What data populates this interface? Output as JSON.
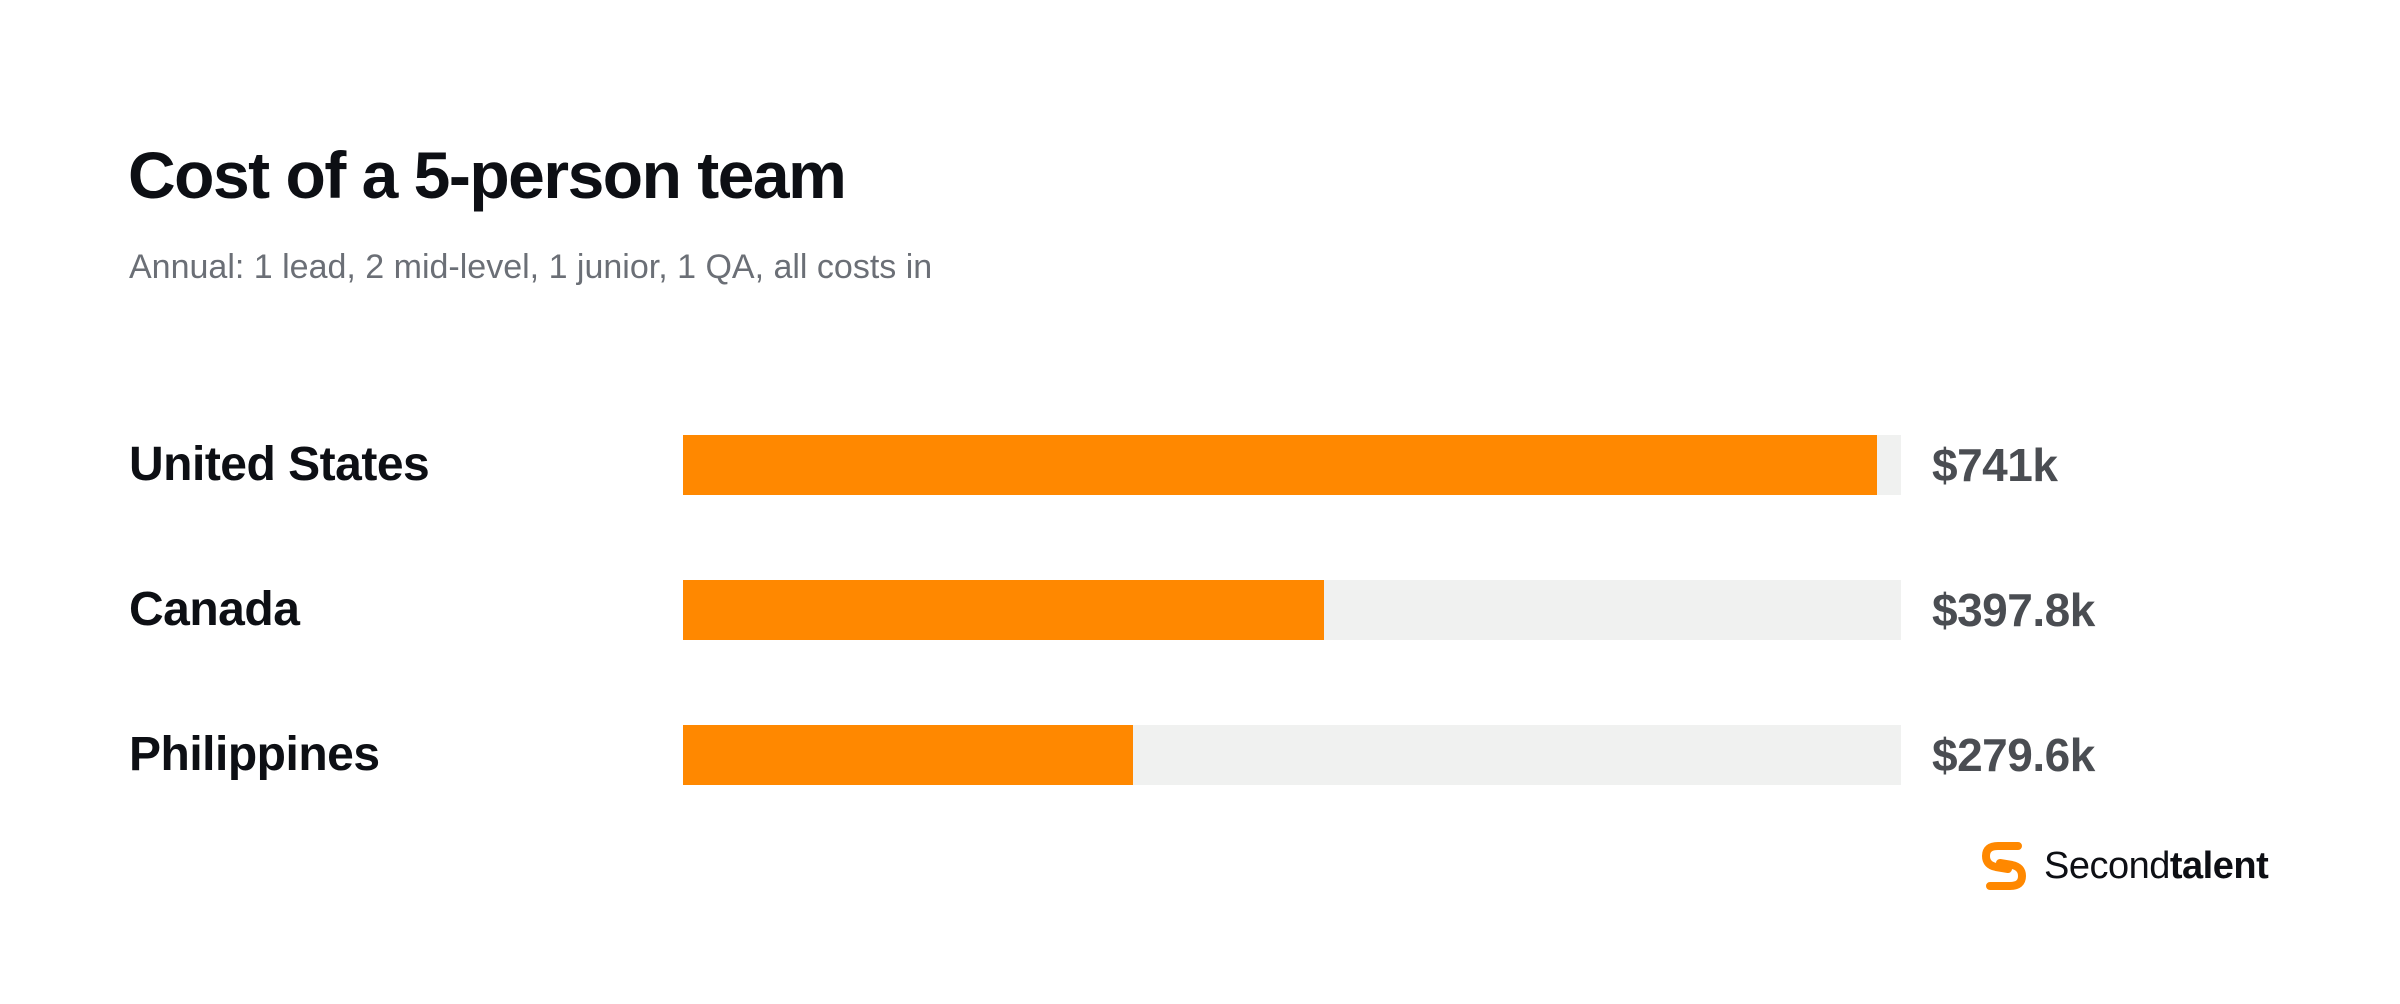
{
  "colors": {
    "bar": "#ff8800",
    "track": "#f0f1f0",
    "title": "#0d0f14",
    "subtitle": "#6b6f76",
    "value": "#4a4d52"
  },
  "chart_data": {
    "type": "bar",
    "orientation": "horizontal",
    "title": "Cost of a 5-person team",
    "subtitle": "Annual: 1 lead, 2 mid-level, 1 junior, 1 QA, all costs in",
    "categories": [
      "United States",
      "Canada",
      "Philippines"
    ],
    "values": [
      741,
      397.8,
      279.6
    ],
    "value_labels": [
      "$741k",
      "$397.8k",
      "$279.6k"
    ],
    "unit": "k USD",
    "xlim": [
      0,
      756
    ],
    "grid": false,
    "legend": "none"
  },
  "brand": {
    "logo_icon": "secondtalent-logo-icon",
    "name_regular": "Second",
    "name_bold": "talent"
  }
}
